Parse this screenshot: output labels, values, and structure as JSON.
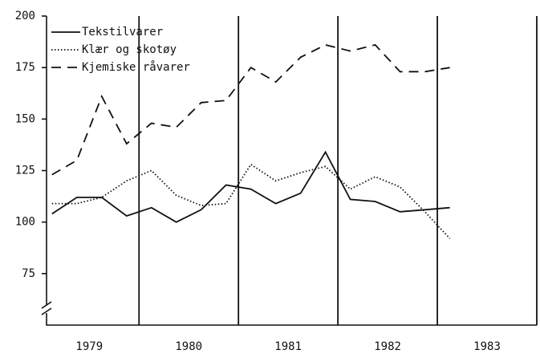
{
  "chart_data": {
    "type": "line",
    "x": [
      1979.125,
      1979.375,
      1979.625,
      1979.875,
      1980.125,
      1980.375,
      1980.625,
      1980.875,
      1981.125,
      1981.375,
      1981.625,
      1981.875,
      1982.125,
      1982.375,
      1982.625,
      1982.875,
      1983.125
    ],
    "series": [
      {
        "name": "Tekstilvarer",
        "color": "#111111",
        "dash": "solid",
        "values": [
          104,
          112,
          112,
          103,
          107,
          100,
          106,
          118,
          116,
          109,
          114,
          134,
          111,
          110,
          105,
          106,
          107
        ]
      },
      {
        "name": "Klær og skotøy",
        "color": "#111111",
        "dash": "dotted",
        "values": [
          109,
          109,
          112,
          120,
          125,
          113,
          108,
          109,
          128,
          120,
          124,
          127,
          116,
          122,
          117,
          105,
          92
        ]
      },
      {
        "name": "Kjemiske råvarer",
        "color": "#111111",
        "dash": "dashed",
        "values": [
          123,
          130,
          161,
          138,
          148,
          146,
          158,
          159,
          175,
          168,
          180,
          186,
          183,
          186,
          173,
          173,
          175
        ]
      }
    ],
    "xlim": [
      1979.07,
      1984
    ],
    "xticks": [
      {
        "value": 1979.5,
        "label": "1979"
      },
      {
        "value": 1980.5,
        "label": "1980"
      },
      {
        "value": 1981.5,
        "label": "1981"
      },
      {
        "value": 1982.5,
        "label": "1982"
      },
      {
        "value": 1983.5,
        "label": "1983"
      }
    ],
    "xgrid": [
      1980,
      1981,
      1982,
      1983,
      1984
    ],
    "ylim": [
      50,
      200
    ],
    "yticks": [
      75,
      100,
      125,
      150,
      175,
      200
    ],
    "legend": "top-left"
  }
}
